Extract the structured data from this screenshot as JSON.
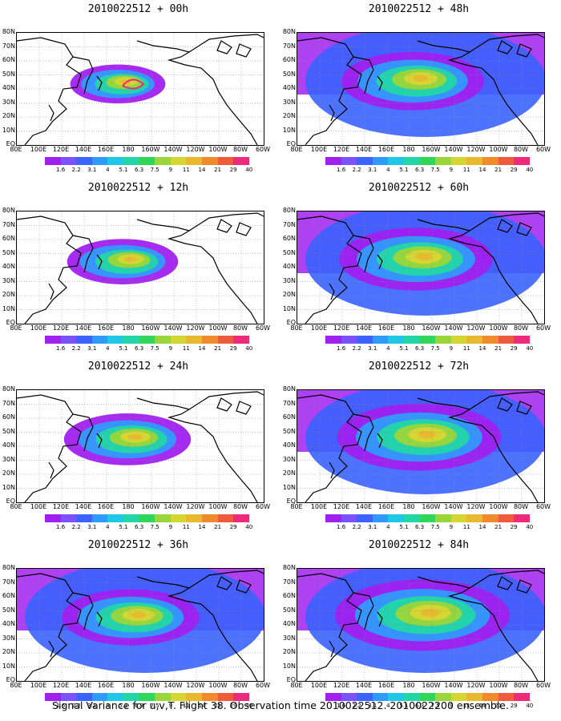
{
  "caption": "Signal Variance for u,v,T. Flight 38. Observation time 2010022512. 2010022200 ensemble.",
  "colorbar": {
    "labels": [
      "1.6",
      "2.2",
      "3.1",
      "4",
      "5.1",
      "6.3",
      "7.5",
      "9",
      "11",
      "14",
      "21",
      "29",
      "40"
    ],
    "colors": [
      "#a020f0",
      "#7b52ff",
      "#3a63ff",
      "#2f9bff",
      "#1ec8e6",
      "#22d6a8",
      "#2fd65a",
      "#9ad63a",
      "#d6d633",
      "#e8b82f",
      "#f08a2a",
      "#f05a3c",
      "#ee2a7a"
    ]
  },
  "lat_labels": [
    "80N",
    "70N",
    "60N",
    "50N",
    "40N",
    "30N",
    "20N",
    "10N",
    "EQ"
  ],
  "lon_labels": [
    "80E",
    "100E",
    "120E",
    "140E",
    "160E",
    "180",
    "160W",
    "140W",
    "120W",
    "100W",
    "80W",
    "60W"
  ],
  "panels": [
    {
      "title": "2010022512 + 00h",
      "fill_level": 0.15
    },
    {
      "title": "2010022512 + 48h",
      "fill_level": 0.6
    },
    {
      "title": "2010022512 + 12h",
      "fill_level": 0.3
    },
    {
      "title": "2010022512 + 60h",
      "fill_level": 0.7
    },
    {
      "title": "2010022512 + 24h",
      "fill_level": 0.45
    },
    {
      "title": "2010022512 + 72h",
      "fill_level": 0.8
    },
    {
      "title": "2010022512 + 36h",
      "fill_level": 0.55
    },
    {
      "title": "2010022512 + 84h",
      "fill_level": 0.9
    }
  ]
}
